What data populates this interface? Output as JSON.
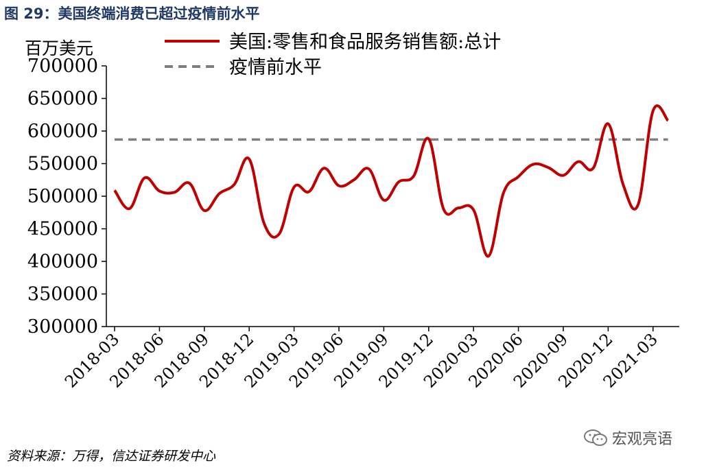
{
  "figure_title": "图 29：美国终端消费已超过疫情前水平",
  "source_note": "资料来源：万得，信达证券研发中心",
  "watermark_text": "宏观亮语",
  "watermark_icon": "wechat-icon",
  "colors": {
    "series": "#c00000",
    "reference": "#7f7f7f",
    "title": "#1f3864"
  },
  "chart_data": {
    "type": "line",
    "unit_label": "百万美元",
    "ylim": [
      300000,
      700000
    ],
    "y_ticks": [
      "300000",
      "350000",
      "400000",
      "450000",
      "500000",
      "550000",
      "600000",
      "650000",
      "700000"
    ],
    "x_tick_labels": [
      "2018-03",
      "2018-06",
      "2018-09",
      "2018-12",
      "2019-03",
      "2019-06",
      "2019-09",
      "2019-12",
      "2020-03",
      "2020-06",
      "2020-09",
      "2020-12",
      "2021-03"
    ],
    "grid": false,
    "legend_position": "top",
    "series": [
      {
        "name": "美国:零售和食品服务销售额:总计",
        "style": "solid",
        "x": [
          "2018-03",
          "2018-04",
          "2018-05",
          "2018-06",
          "2018-07",
          "2018-08",
          "2018-09",
          "2018-10",
          "2018-11",
          "2018-12",
          "2019-01",
          "2019-02",
          "2019-03",
          "2019-04",
          "2019-05",
          "2019-06",
          "2019-07",
          "2019-08",
          "2019-09",
          "2019-10",
          "2019-11",
          "2019-12",
          "2020-01",
          "2020-02",
          "2020-03",
          "2020-04",
          "2020-05",
          "2020-06",
          "2020-07",
          "2020-08",
          "2020-09",
          "2020-10",
          "2020-11",
          "2020-12",
          "2021-01",
          "2021-02",
          "2021-03",
          "2021-04"
        ],
        "values": [
          509000,
          481000,
          528000,
          508000,
          506000,
          520000,
          478000,
          504000,
          518000,
          557000,
          458000,
          442000,
          514000,
          507000,
          543000,
          516000,
          525000,
          542000,
          494000,
          522000,
          531000,
          588000,
          480000,
          482000,
          479000,
          408000,
          505000,
          530000,
          549000,
          544000,
          532000,
          553000,
          543000,
          611000,
          518000,
          487000,
          631000,
          616000
        ]
      },
      {
        "name": "疫情前水平",
        "style": "dashed",
        "x": [
          "2018-03",
          "2021-04"
        ],
        "values": [
          587000,
          587000
        ]
      }
    ]
  }
}
